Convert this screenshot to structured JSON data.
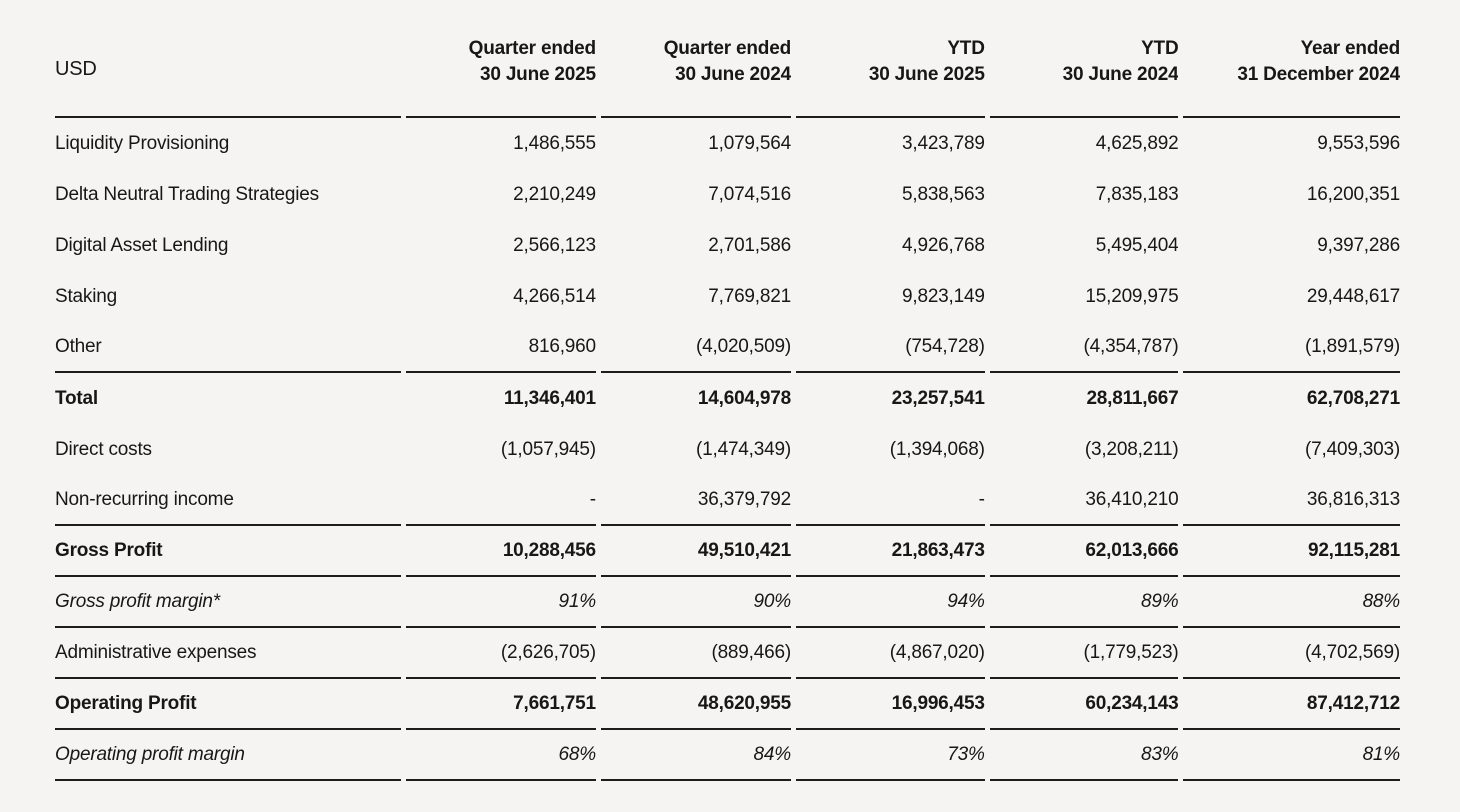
{
  "colors": {
    "background": "#f5f4f2",
    "text": "#171717",
    "rule": "#1c1c1c"
  },
  "table": {
    "unit_label": "USD",
    "columns": [
      {
        "line1": "Quarter ended",
        "line2": "30 June 2025"
      },
      {
        "line1": "Quarter ended",
        "line2": "30 June 2024"
      },
      {
        "line1": "YTD",
        "line2": "30 June 2025"
      },
      {
        "line1": "YTD",
        "line2": "30 June 2024"
      },
      {
        "line1": "Year ended",
        "line2": "31 December 2024"
      }
    ],
    "rows": [
      {
        "label": "Liquidity Provisioning",
        "values": [
          "1,486,555",
          "1,079,564",
          "3,423,789",
          "4,625,892",
          "9,553,596"
        ],
        "style": "normal",
        "border_bottom": false
      },
      {
        "label": "Delta Neutral Trading Strategies",
        "values": [
          "2,210,249",
          "7,074,516",
          "5,838,563",
          "7,835,183",
          "16,200,351"
        ],
        "style": "normal",
        "border_bottom": false
      },
      {
        "label": "Digital Asset Lending",
        "values": [
          "2,566,123",
          "2,701,586",
          "4,926,768",
          "5,495,404",
          "9,397,286"
        ],
        "style": "normal",
        "border_bottom": false
      },
      {
        "label": "Staking",
        "values": [
          "4,266,514",
          "7,769,821",
          "9,823,149",
          "15,209,975",
          "29,448,617"
        ],
        "style": "normal",
        "border_bottom": false
      },
      {
        "label": "Other",
        "values": [
          "816,960",
          "(4,020,509)",
          "(754,728)",
          "(4,354,787)",
          "(1,891,579)"
        ],
        "style": "normal",
        "border_bottom": true
      },
      {
        "label": "Total",
        "values": [
          "11,346,401",
          "14,604,978",
          "23,257,541",
          "28,811,667",
          "62,708,271"
        ],
        "style": "bold",
        "border_bottom": false
      },
      {
        "label": "Direct costs",
        "values": [
          "(1,057,945)",
          "(1,474,349)",
          "(1,394,068)",
          "(3,208,211)",
          "(7,409,303)"
        ],
        "style": "normal",
        "border_bottom": false
      },
      {
        "label": "Non-recurring income",
        "values": [
          "-",
          "36,379,792",
          "-",
          "36,410,210",
          "36,816,313"
        ],
        "style": "normal",
        "border_bottom": true
      },
      {
        "label": "Gross Profit",
        "values": [
          "10,288,456",
          "49,510,421",
          "21,863,473",
          "62,013,666",
          "92,115,281"
        ],
        "style": "bold",
        "border_bottom": true
      },
      {
        "label": "Gross profit margin*",
        "values": [
          "91%",
          "90%",
          "94%",
          "89%",
          "88%"
        ],
        "style": "italic",
        "border_bottom": true
      },
      {
        "label": "Administrative expenses",
        "values": [
          "(2,626,705)",
          "(889,466)",
          "(4,867,020)",
          "(1,779,523)",
          "(4,702,569)"
        ],
        "style": "normal",
        "border_bottom": true
      },
      {
        "label": "Operating Profit",
        "values": [
          "7,661,751",
          "48,620,955",
          "16,996,453",
          "60,234,143",
          "87,412,712"
        ],
        "style": "bold",
        "border_bottom": true
      },
      {
        "label": "Operating profit margin",
        "values": [
          "68%",
          "84%",
          "73%",
          "83%",
          "81%"
        ],
        "style": "italic",
        "border_bottom": true
      }
    ]
  }
}
